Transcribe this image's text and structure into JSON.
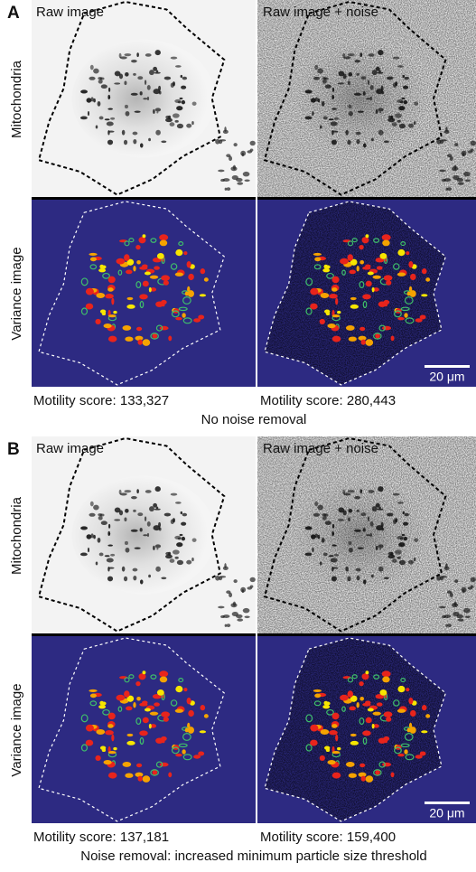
{
  "panels": [
    {
      "letter": "A",
      "column_titles": [
        "Raw image",
        "Raw image + noise"
      ],
      "row_labels": [
        "Mitochondria",
        "Variance image"
      ],
      "scale_bar": "20 μm",
      "scores": [
        "Motility score: 133,327",
        "Motility score: 280,443"
      ],
      "caption": "No noise removal"
    },
    {
      "letter": "B",
      "column_titles": [
        "Raw image",
        "Raw image + noise"
      ],
      "row_labels": [
        "Mitochondria",
        "Variance image"
      ],
      "scale_bar": "20 μm",
      "scores": [
        "Motility score: 137,181",
        "Motility score: 159,400"
      ],
      "caption": "Noise removal: increased minimum particle size threshold"
    }
  ]
}
